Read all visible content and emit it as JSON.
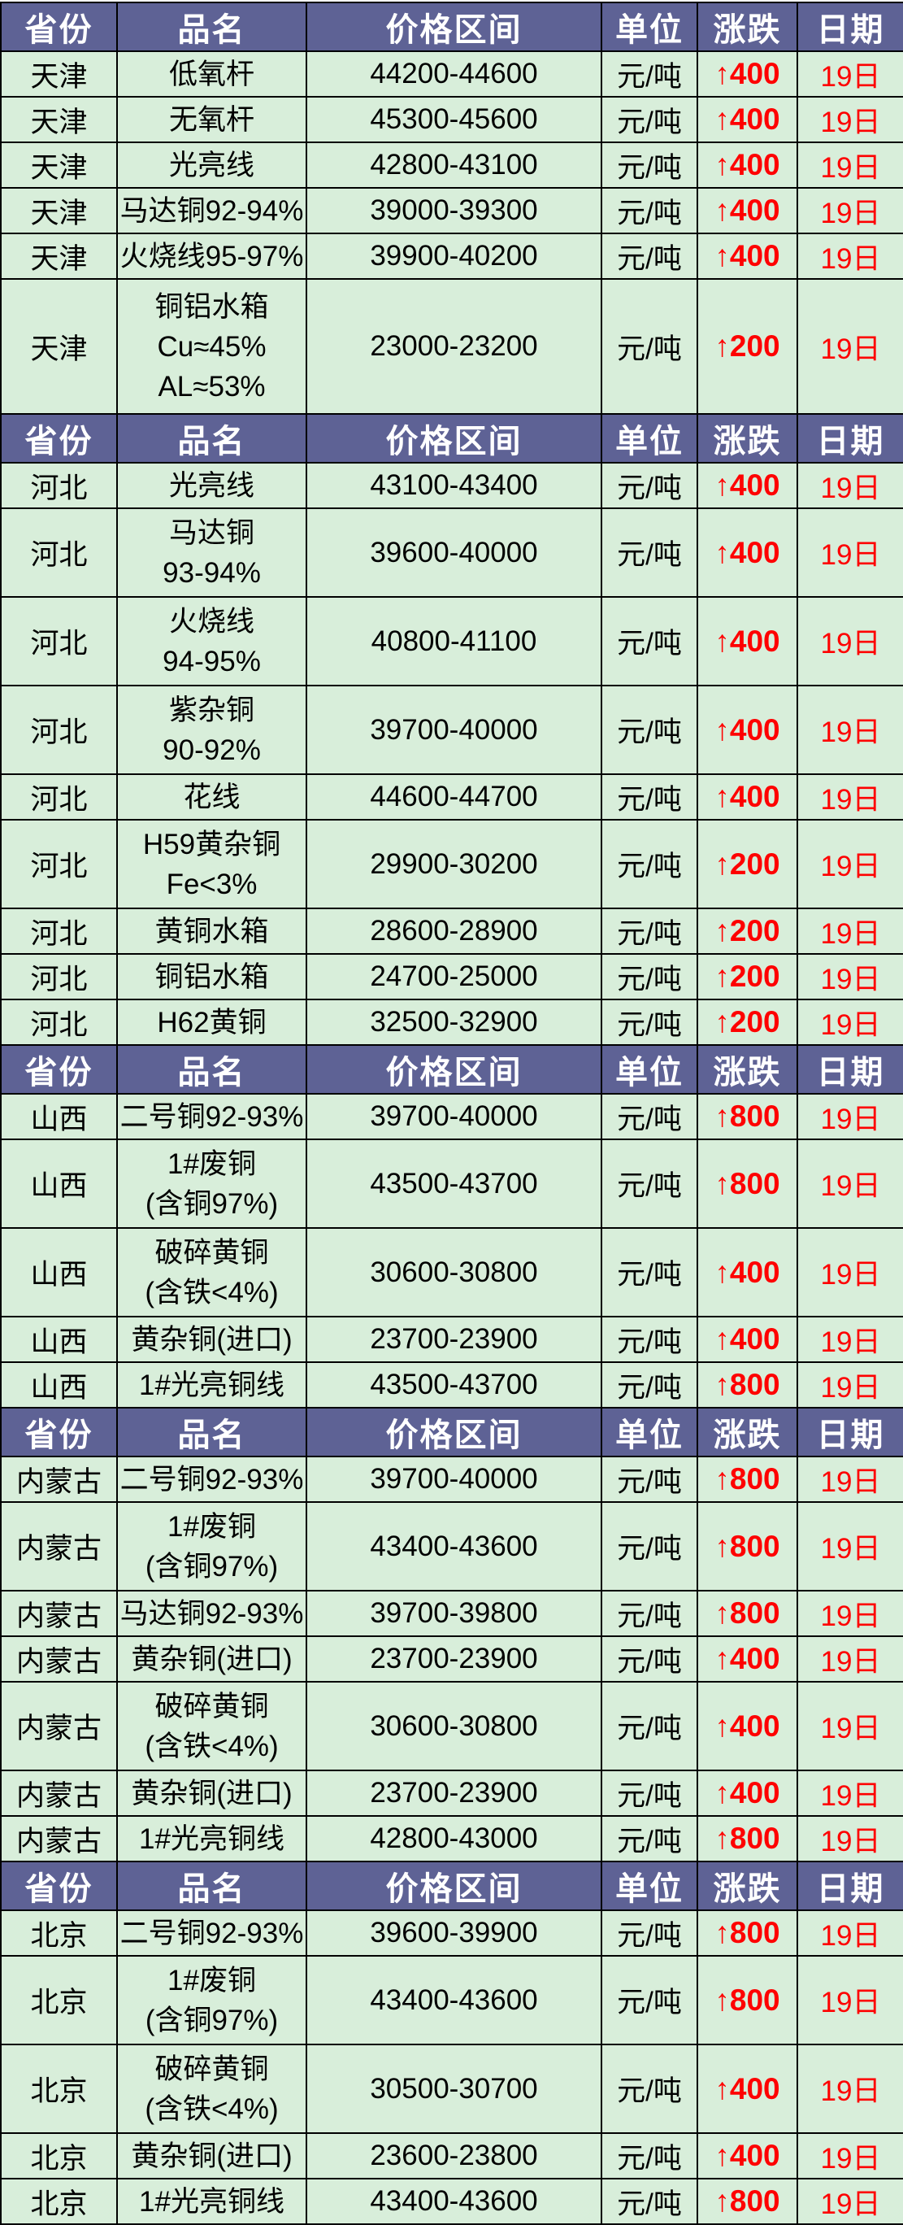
{
  "table": {
    "colors": {
      "header_bg": "#5e6295",
      "header_text": "#ffffff",
      "row_bg": "#d8eeda",
      "text": "#000000",
      "up": "#fe0000",
      "border": "#000000",
      "page_bg": "#ffffff"
    },
    "up_arrow": "↑",
    "columns": [
      {
        "key": "province",
        "label": "省份"
      },
      {
        "key": "product",
        "label": "品名"
      },
      {
        "key": "price",
        "label": "价格区间"
      },
      {
        "key": "unit",
        "label": "单位"
      },
      {
        "key": "change",
        "label": "涨跌"
      },
      {
        "key": "date",
        "label": "日期"
      }
    ],
    "sections": [
      {
        "rows": [
          {
            "province": "天津",
            "product": [
              "低氧杆"
            ],
            "price": "44200-44600",
            "unit": "元/吨",
            "change": "400",
            "date": "19日"
          },
          {
            "province": "天津",
            "product": [
              "无氧杆"
            ],
            "price": "45300-45600",
            "unit": "元/吨",
            "change": "400",
            "date": "19日"
          },
          {
            "province": "天津",
            "product": [
              "光亮线"
            ],
            "price": "42800-43100",
            "unit": "元/吨",
            "change": "400",
            "date": "19日"
          },
          {
            "province": "天津",
            "product": [
              "马达铜92-94%"
            ],
            "price": "39000-39300",
            "unit": "元/吨",
            "change": "400",
            "date": "19日"
          },
          {
            "province": "天津",
            "product": [
              "火烧线95-97%"
            ],
            "price": "39900-40200",
            "unit": "元/吨",
            "change": "400",
            "date": "19日"
          },
          {
            "province": "天津",
            "product": [
              "铜铝水箱",
              "Cu≈45%",
              "AL≈53%"
            ],
            "price": "23000-23200",
            "unit": "元/吨",
            "change": "200",
            "date": "19日"
          }
        ]
      },
      {
        "rows": [
          {
            "province": "河北",
            "product": [
              "光亮线"
            ],
            "price": "43100-43400",
            "unit": "元/吨",
            "change": "400",
            "date": "19日"
          },
          {
            "province": "河北",
            "product": [
              "马达铜",
              "93-94%"
            ],
            "price": "39600-40000",
            "unit": "元/吨",
            "change": "400",
            "date": "19日"
          },
          {
            "province": "河北",
            "product": [
              "火烧线",
              "94-95%"
            ],
            "price": "40800-41100",
            "unit": "元/吨",
            "change": "400",
            "date": "19日"
          },
          {
            "province": "河北",
            "product": [
              "紫杂铜",
              "90-92%"
            ],
            "price": "39700-40000",
            "unit": "元/吨",
            "change": "400",
            "date": "19日"
          },
          {
            "province": "河北",
            "product": [
              "花线"
            ],
            "price": "44600-44700",
            "unit": "元/吨",
            "change": "400",
            "date": "19日"
          },
          {
            "province": "河北",
            "product": [
              "H59黄杂铜",
              "Fe<3%"
            ],
            "price": "29900-30200",
            "unit": "元/吨",
            "change": "200",
            "date": "19日"
          },
          {
            "province": "河北",
            "product": [
              "黄铜水箱"
            ],
            "price": "28600-28900",
            "unit": "元/吨",
            "change": "200",
            "date": "19日"
          },
          {
            "province": "河北",
            "product": [
              "铜铝水箱"
            ],
            "price": "24700-25000",
            "unit": "元/吨",
            "change": "200",
            "date": "19日"
          },
          {
            "province": "河北",
            "product": [
              "H62黄铜"
            ],
            "price": "32500-32900",
            "unit": "元/吨",
            "change": "200",
            "date": "19日"
          }
        ]
      },
      {
        "rows": [
          {
            "province": "山西",
            "product": [
              "二号铜92-93%"
            ],
            "price": "39700-40000",
            "unit": "元/吨",
            "change": "800",
            "date": "19日"
          },
          {
            "province": "山西",
            "product": [
              "1#废铜",
              "(含铜97%)"
            ],
            "price": "43500-43700",
            "unit": "元/吨",
            "change": "800",
            "date": "19日"
          },
          {
            "province": "山西",
            "product": [
              "破碎黄铜",
              "(含铁<4%)"
            ],
            "price": "30600-30800",
            "unit": "元/吨",
            "change": "400",
            "date": "19日"
          },
          {
            "province": "山西",
            "product": [
              "黄杂铜(进口)"
            ],
            "price": "23700-23900",
            "unit": "元/吨",
            "change": "400",
            "date": "19日"
          },
          {
            "province": "山西",
            "product": [
              "1#光亮铜线"
            ],
            "price": "43500-43700",
            "unit": "元/吨",
            "change": "800",
            "date": "19日"
          }
        ]
      },
      {
        "rows": [
          {
            "province": "内蒙古",
            "product": [
              "二号铜92-93%"
            ],
            "price": "39700-40000",
            "unit": "元/吨",
            "change": "800",
            "date": "19日"
          },
          {
            "province": "内蒙古",
            "product": [
              "1#废铜",
              "(含铜97%)"
            ],
            "price": "43400-43600",
            "unit": "元/吨",
            "change": "800",
            "date": "19日"
          },
          {
            "province": "内蒙古",
            "product": [
              "马达铜92-93%"
            ],
            "price": "39700-39800",
            "unit": "元/吨",
            "change": "800",
            "date": "19日"
          },
          {
            "province": "内蒙古",
            "product": [
              "黄杂铜(进口)"
            ],
            "price": "23700-23900",
            "unit": "元/吨",
            "change": "400",
            "date": "19日"
          },
          {
            "province": "内蒙古",
            "product": [
              "破碎黄铜",
              "(含铁<4%)"
            ],
            "price": "30600-30800",
            "unit": "元/吨",
            "change": "400",
            "date": "19日"
          },
          {
            "province": "内蒙古",
            "product": [
              "黄杂铜(进口)"
            ],
            "price": "23700-23900",
            "unit": "元/吨",
            "change": "400",
            "date": "19日"
          },
          {
            "province": "内蒙古",
            "product": [
              "1#光亮铜线"
            ],
            "price": "42800-43000",
            "unit": "元/吨",
            "change": "800",
            "date": "19日"
          }
        ]
      },
      {
        "rows": [
          {
            "province": "北京",
            "product": [
              "二号铜92-93%"
            ],
            "price": "39600-39900",
            "unit": "元/吨",
            "change": "800",
            "date": "19日"
          },
          {
            "province": "北京",
            "product": [
              "1#废铜",
              "(含铜97%)"
            ],
            "price": "43400-43600",
            "unit": "元/吨",
            "change": "800",
            "date": "19日"
          },
          {
            "province": "北京",
            "product": [
              "破碎黄铜",
              "(含铁<4%)"
            ],
            "price": "30500-30700",
            "unit": "元/吨",
            "change": "400",
            "date": "19日"
          },
          {
            "province": "北京",
            "product": [
              "黄杂铜(进口)"
            ],
            "price": "23600-23800",
            "unit": "元/吨",
            "change": "400",
            "date": "19日"
          },
          {
            "province": "北京",
            "product": [
              "1#光亮铜线"
            ],
            "price": "43400-43600",
            "unit": "元/吨",
            "change": "800",
            "date": "19日"
          }
        ]
      }
    ]
  }
}
